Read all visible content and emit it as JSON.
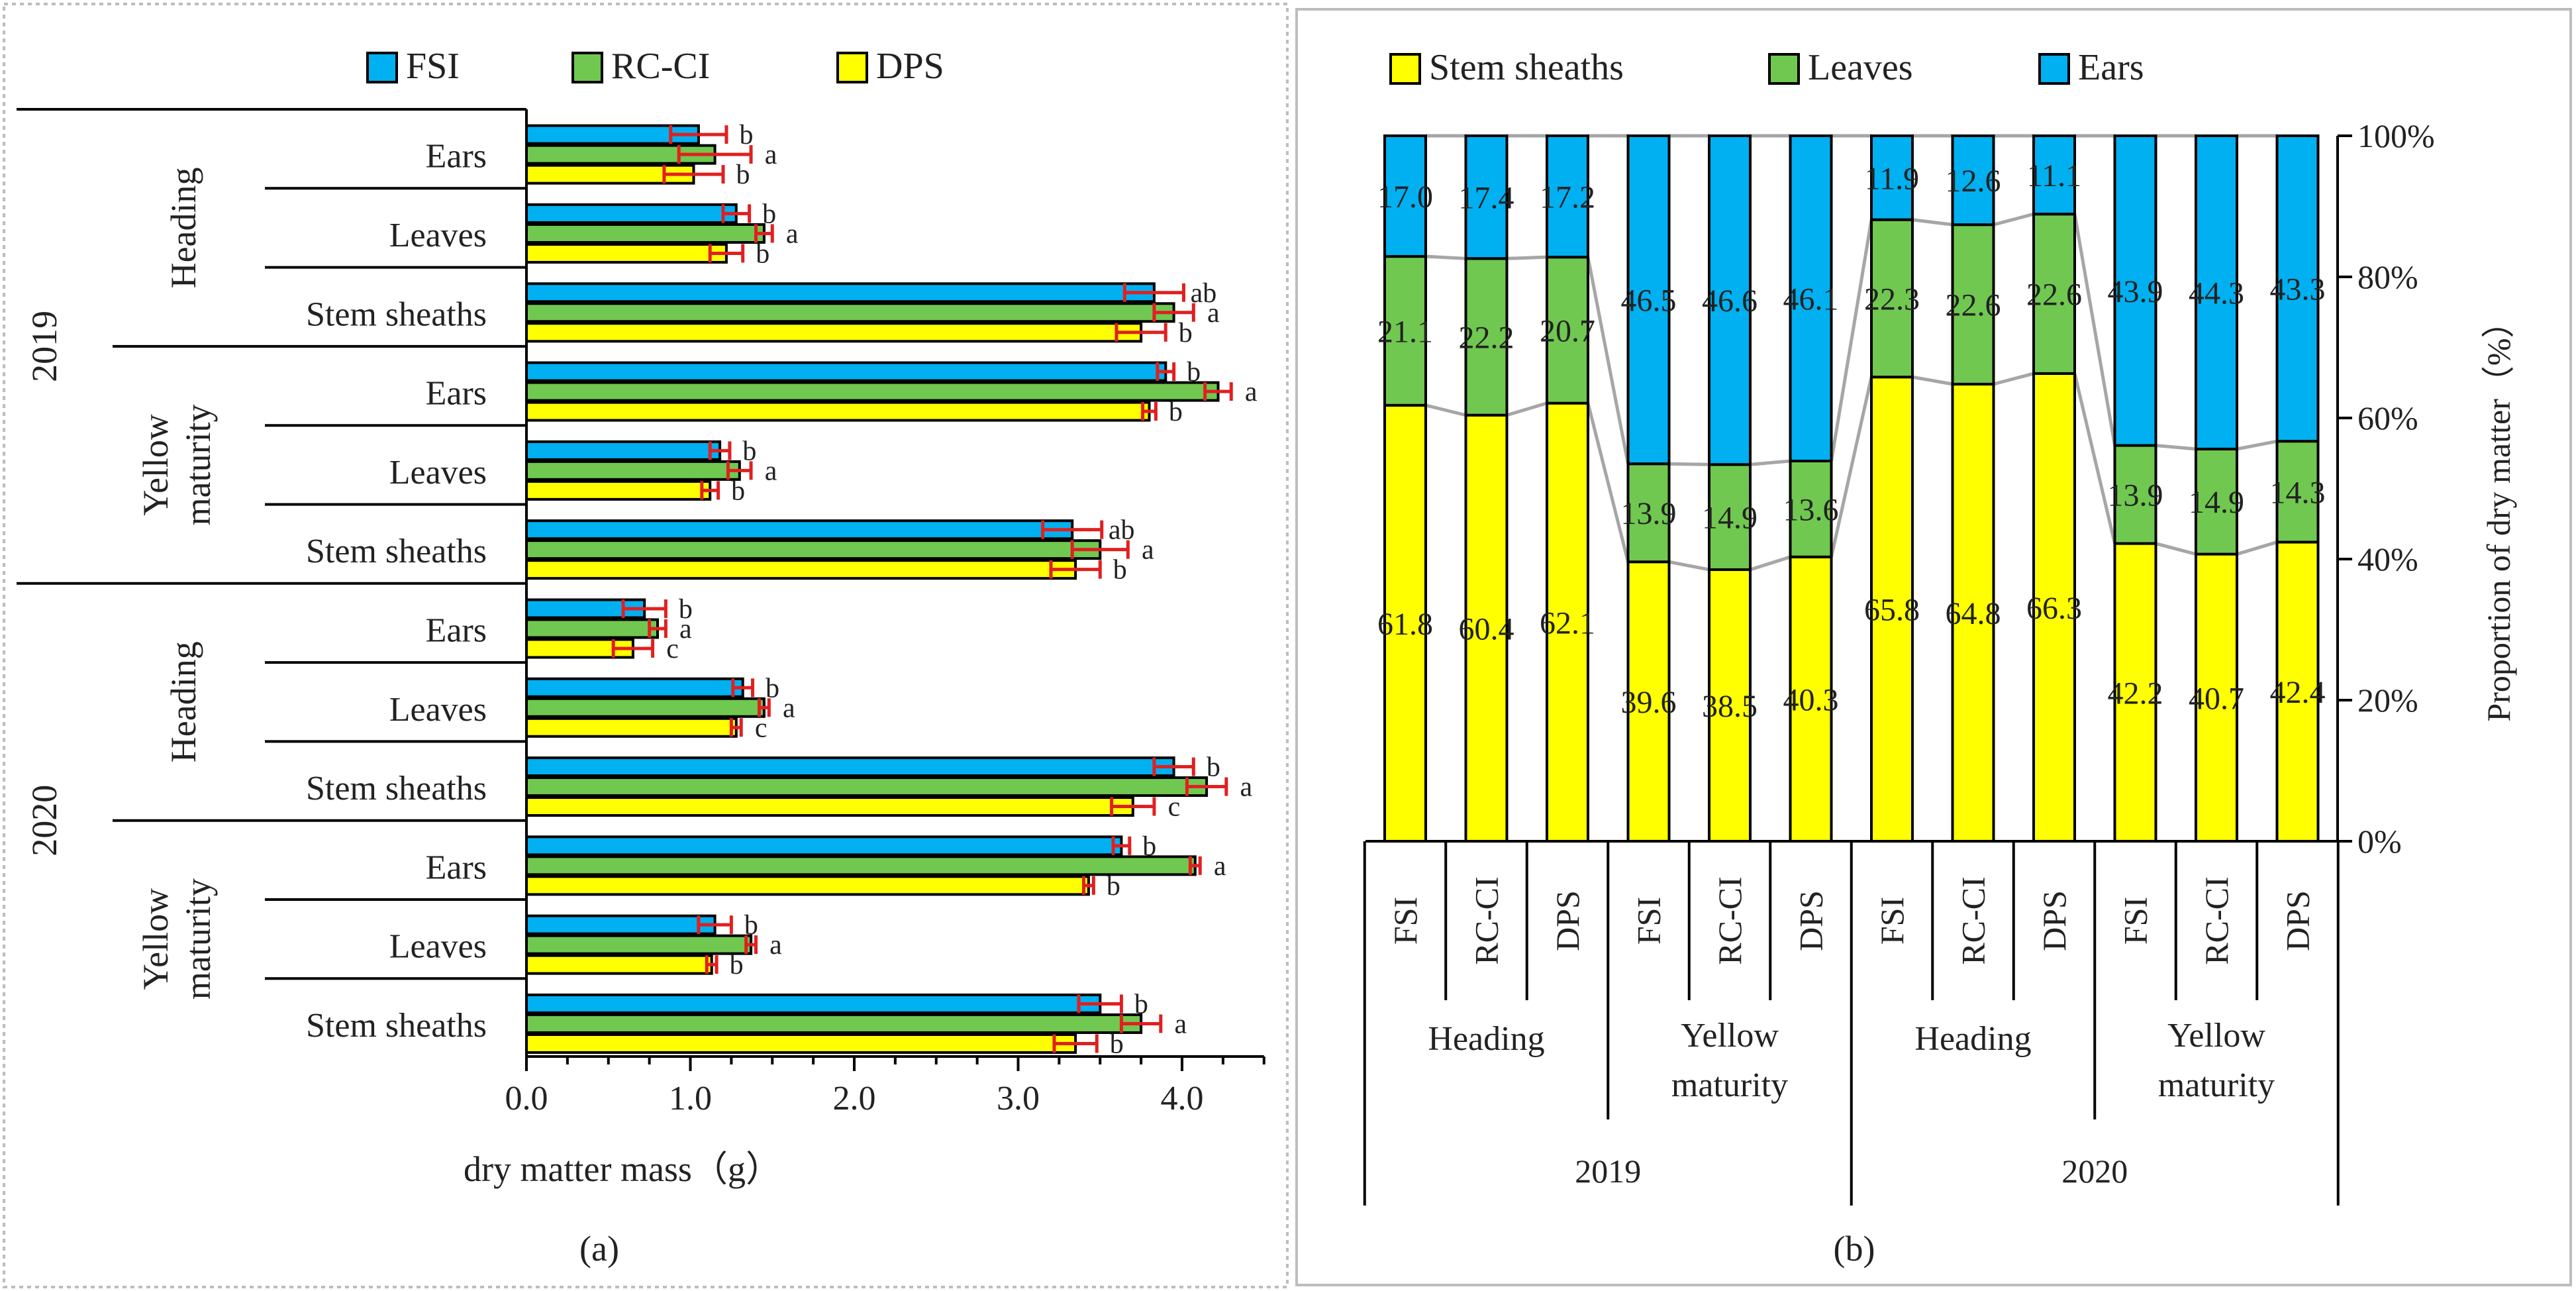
{
  "colors": {
    "FSI": "#00b0f0",
    "RC-CI": "#70c850",
    "DPS": "#ffff00",
    "error_bar": "#e02020",
    "connector": "#a6a6a6",
    "stroke": "#000000"
  },
  "chart_data": [
    {
      "type": "bar",
      "orientation": "horizontal",
      "panel_label": "(a)",
      "xlabel": "dry matter mass（g）",
      "xlim": [
        0,
        4.5
      ],
      "x_tick_labels": [
        "0.0",
        "1.0",
        "2.0",
        "3.0",
        "4.0"
      ],
      "x_tick_values": [
        0,
        1,
        2,
        3,
        4
      ],
      "legend": [
        "FSI",
        "RC-CI",
        "DPS"
      ],
      "groups": [
        {
          "year": "2019",
          "stage": "Heading",
          "organs": [
            {
              "organ": "Ears",
              "values": [
                1.05,
                1.15,
                1.02
              ],
              "errors": [
                0.17,
                0.22,
                0.18
              ],
              "letters": [
                "b",
                "a",
                "b"
              ]
            },
            {
              "organ": "Leaves",
              "values": [
                1.28,
                1.45,
                1.22
              ],
              "errors": [
                0.08,
                0.05,
                0.1
              ],
              "letters": [
                "b",
                "a",
                "b"
              ]
            },
            {
              "organ": "Stem sheaths",
              "values": [
                3.83,
                3.95,
                3.75
              ],
              "errors": [
                0.18,
                0.12,
                0.15
              ],
              "letters": [
                "ab",
                "a",
                "b"
              ]
            }
          ]
        },
        {
          "year": "2019",
          "stage": "Yellow maturity",
          "organs": [
            {
              "organ": "Ears",
              "values": [
                3.9,
                4.22,
                3.8
              ],
              "errors": [
                0.05,
                0.08,
                0.04
              ],
              "letters": [
                "b",
                "a",
                "b"
              ]
            },
            {
              "organ": "Leaves",
              "values": [
                1.18,
                1.3,
                1.12
              ],
              "errors": [
                0.06,
                0.07,
                0.05
              ],
              "letters": [
                "b",
                "a",
                "b"
              ]
            },
            {
              "organ": "Stem sheaths",
              "values": [
                3.33,
                3.5,
                3.35
              ],
              "errors": [
                0.18,
                0.17,
                0.15
              ],
              "letters": [
                "ab",
                "a",
                "b"
              ]
            }
          ]
        },
        {
          "year": "2020",
          "stage": "Heading",
          "organs": [
            {
              "organ": "Ears",
              "values": [
                0.72,
                0.8,
                0.65
              ],
              "errors": [
                0.13,
                0.05,
                0.12
              ],
              "letters": [
                "b",
                "a",
                "c"
              ]
            },
            {
              "organ": "Leaves",
              "values": [
                1.32,
                1.45,
                1.28
              ],
              "errors": [
                0.06,
                0.03,
                0.03
              ],
              "letters": [
                "b",
                "a",
                "c"
              ]
            },
            {
              "organ": "Stem sheaths",
              "values": [
                3.95,
                4.15,
                3.7
              ],
              "errors": [
                0.12,
                0.12,
                0.13
              ],
              "letters": [
                "b",
                "a",
                "c"
              ]
            }
          ]
        },
        {
          "year": "2020",
          "stage": "Yellow maturity",
          "organs": [
            {
              "organ": "Ears",
              "values": [
                3.63,
                4.08,
                3.43
              ],
              "errors": [
                0.05,
                0.03,
                0.03
              ],
              "letters": [
                "b",
                "a",
                "b"
              ]
            },
            {
              "organ": "Leaves",
              "values": [
                1.15,
                1.37,
                1.13
              ],
              "errors": [
                0.1,
                0.03,
                0.03
              ],
              "letters": [
                "b",
                "a",
                "b"
              ]
            },
            {
              "organ": "Stem sheaths",
              "values": [
                3.5,
                3.75,
                3.35
              ],
              "errors": [
                0.13,
                0.12,
                0.13
              ],
              "letters": [
                "b",
                "a",
                "b"
              ]
            }
          ]
        }
      ],
      "year_labels": [
        "2019",
        "2020"
      ],
      "stage_labels": {
        "heading": "Heading",
        "yellow_line1": "Yellow",
        "yellow_line2": "maturity"
      }
    },
    {
      "type": "bar",
      "stacked": true,
      "percent": true,
      "panel_label": "(b)",
      "ylabel": "Proportion of dry matter（%）",
      "ylim": [
        0,
        100
      ],
      "y_tick_labels": [
        "0%",
        "20%",
        "40%",
        "60%",
        "80%",
        "100%"
      ],
      "y_tick_values": [
        0,
        20,
        40,
        60,
        80,
        100
      ],
      "legend": [
        "Stem sheaths",
        "Leaves",
        "Ears"
      ],
      "columns": [
        {
          "treatment": "FSI",
          "stage": "Heading",
          "year": "2019",
          "stem": "61.8",
          "leaves": "21.1",
          "ears": "17.0"
        },
        {
          "treatment": "RC-CI",
          "stage": "Heading",
          "year": "2019",
          "stem": "60.4",
          "leaves": "22.2",
          "ears": "17.4"
        },
        {
          "treatment": "DPS",
          "stage": "Heading",
          "year": "2019",
          "stem": "62.1",
          "leaves": "20.7",
          "ears": "17.2"
        },
        {
          "treatment": "FSI",
          "stage": "Yellow maturity",
          "year": "2019",
          "stem": "39.6",
          "leaves": "13.9",
          "ears": "46.5"
        },
        {
          "treatment": "RC-CI",
          "stage": "Yellow maturity",
          "year": "2019",
          "stem": "38.5",
          "leaves": "14.9",
          "ears": "46.6"
        },
        {
          "treatment": "DPS",
          "stage": "Yellow maturity",
          "year": "2019",
          "stem": "40.3",
          "leaves": "13.6",
          "ears": "46.1"
        },
        {
          "treatment": "FSI",
          "stage": "Heading",
          "year": "2020",
          "stem": "65.8",
          "leaves": "22.3",
          "ears": "11.9"
        },
        {
          "treatment": "RC-CI",
          "stage": "Heading",
          "year": "2020",
          "stem": "64.8",
          "leaves": "22.6",
          "ears": "12.6"
        },
        {
          "treatment": "DPS",
          "stage": "Heading",
          "year": "2020",
          "stem": "66.3",
          "leaves": "22.6",
          "ears": "11.1"
        },
        {
          "treatment": "FSI",
          "stage": "Yellow maturity",
          "year": "2020",
          "stem": "42.2",
          "leaves": "13.9",
          "ears": "43.9"
        },
        {
          "treatment": "RC-CI",
          "stage": "Yellow maturity",
          "year": "2020",
          "stem": "40.7",
          "leaves": "14.9",
          "ears": "44.3"
        },
        {
          "treatment": "DPS",
          "stage": "Yellow maturity",
          "year": "2020",
          "stem": "42.4",
          "leaves": "14.3",
          "ears": "43.3"
        }
      ],
      "stage_groups": [
        {
          "line1": "Heading",
          "line2": ""
        },
        {
          "line1": "Yellow",
          "line2": "maturity"
        },
        {
          "line1": "Heading",
          "line2": ""
        },
        {
          "line1": "Yellow",
          "line2": "maturity"
        }
      ],
      "year_labels": [
        "2019",
        "2020"
      ]
    }
  ]
}
